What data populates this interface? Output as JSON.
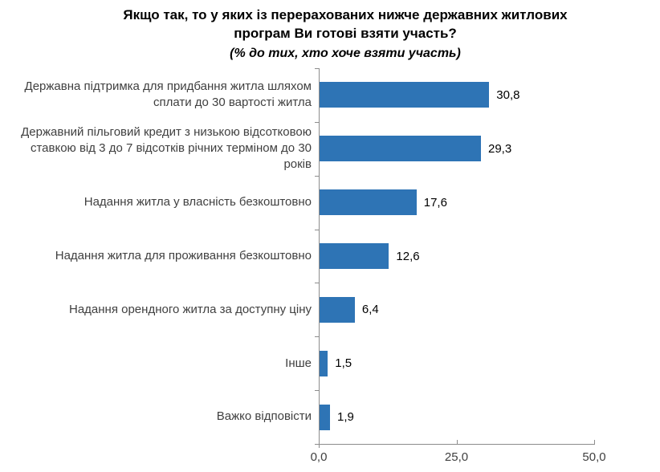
{
  "title": {
    "line1": "Якщо так, то у яких із перерахованих нижче державних житлових",
    "line2": "програм Ви готові взяти участь?",
    "subtitle": "(% до тих, хто хоче взяти участь)"
  },
  "chart_data": {
    "type": "bar",
    "orientation": "horizontal",
    "title": "Якщо так, то у яких із перерахованих нижче державних житлових програм Ви готові взяти участь?",
    "subtitle": "(% до тих, хто хоче взяти участь)",
    "categories": [
      "Державна підтримка для придбання житла шляхом сплати до 30 вартості житла",
      "Державний пільговий кредит з низькою відсотковою ставкою від 3 до 7 відсотків річних терміном до 30 років",
      "Надання житла у власність безкоштовно",
      "Надання житла для проживання безкоштовно",
      "Надання орендного житла за доступну ціну",
      "Інше",
      "Важко відповісти"
    ],
    "values": [
      30.8,
      29.3,
      17.6,
      12.6,
      6.4,
      1.5,
      1.9
    ],
    "value_labels": [
      "30,8",
      "29,3",
      "17,6",
      "12,6",
      "6,4",
      "1,5",
      "1,9"
    ],
    "xlim": [
      0,
      50
    ],
    "x_ticks": [
      0,
      25,
      50
    ],
    "x_tick_labels": [
      "0,0",
      "25,0",
      "50,0"
    ],
    "grid": false,
    "legend": "none",
    "colors": {
      "bar": "#2E74B5",
      "axis": "#8C8C8C",
      "category_label": "#404040",
      "value_label": "#000000",
      "title": "#000000"
    }
  }
}
